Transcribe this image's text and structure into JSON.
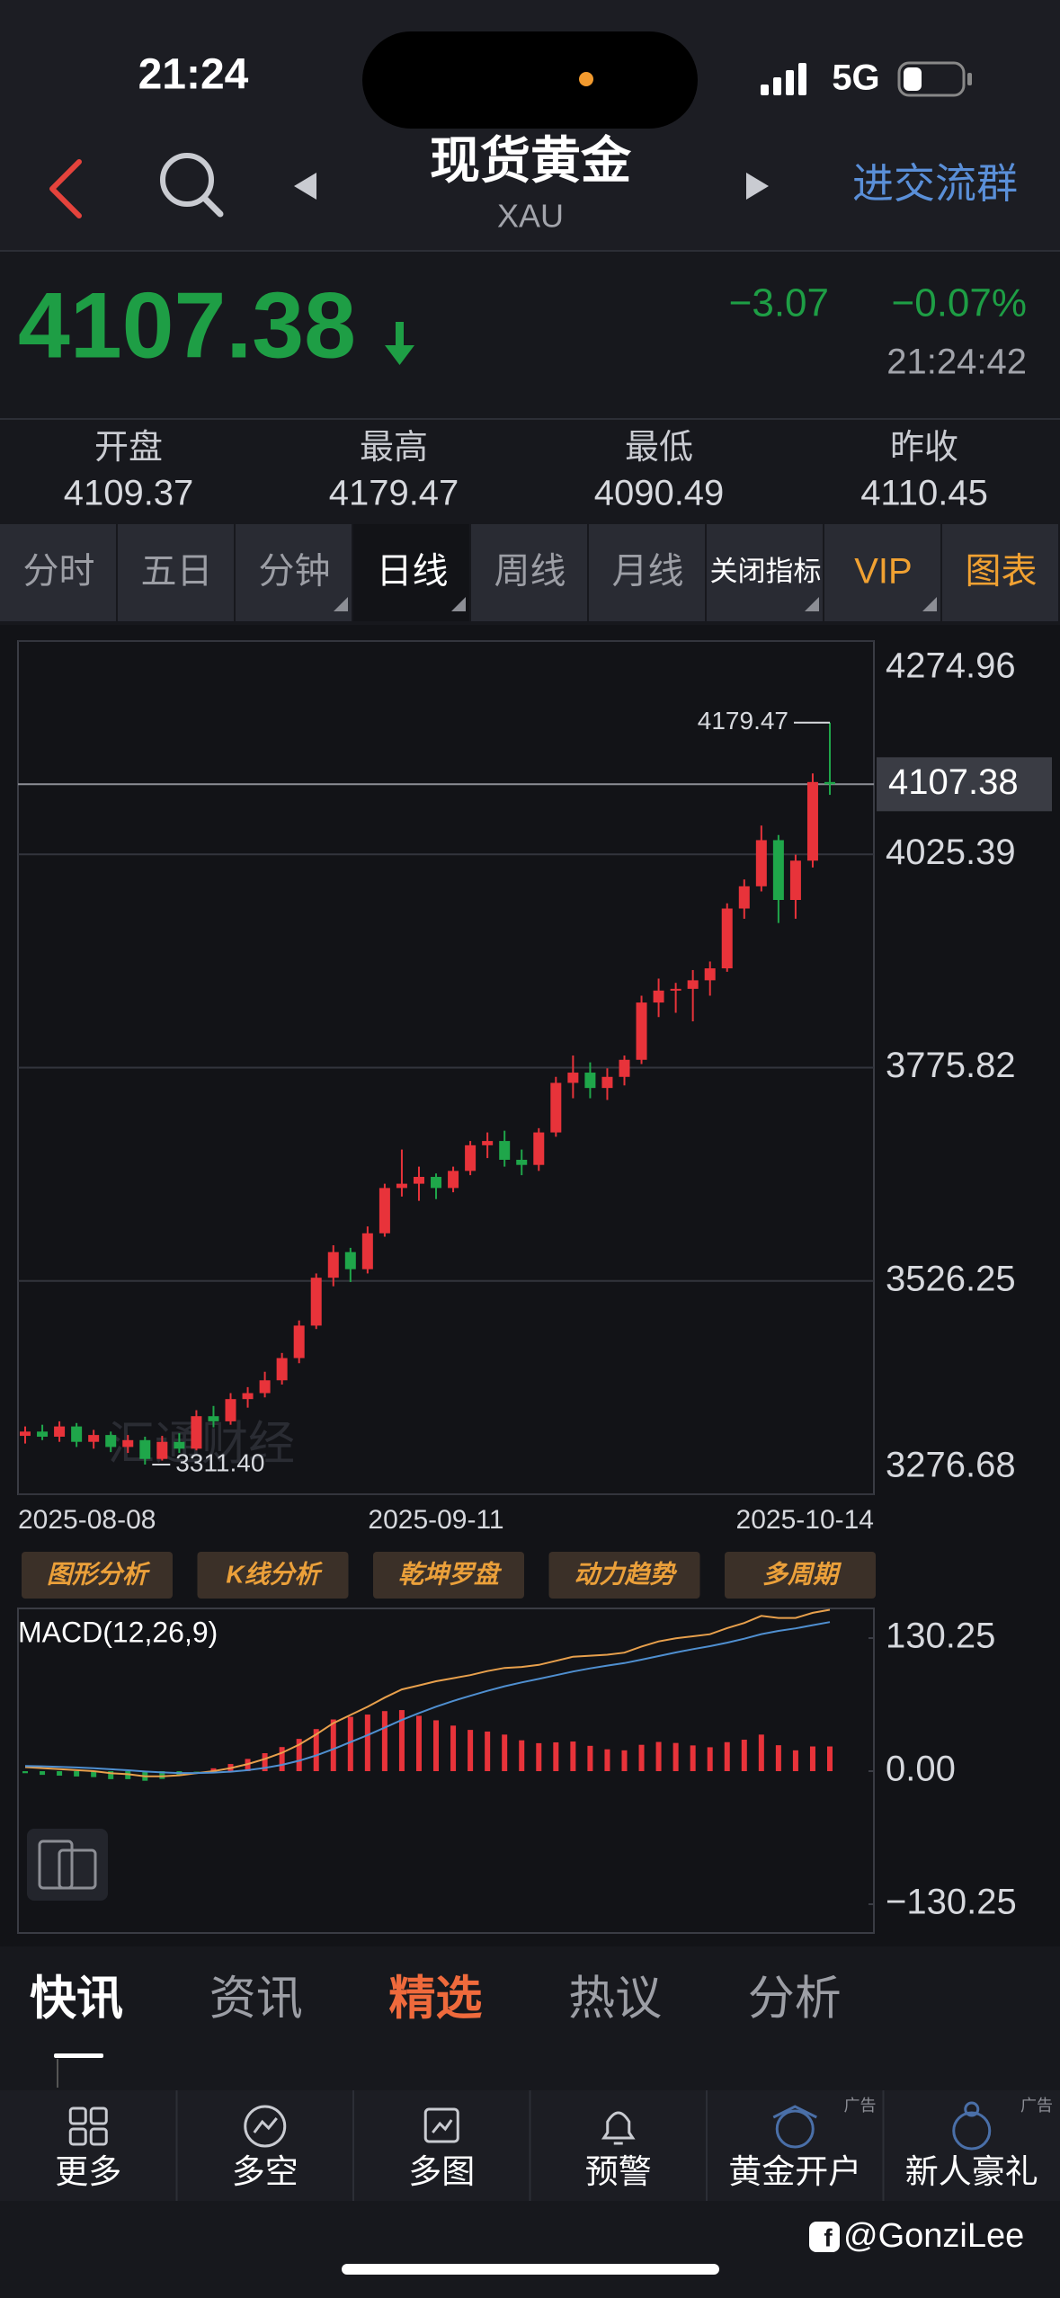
{
  "status_bar": {
    "time": "21:24",
    "network": "5G"
  },
  "header": {
    "title": "现货黄金",
    "symbol": "XAU",
    "group_button": "进交流群"
  },
  "quote": {
    "price": "4107.38",
    "change": "−3.07",
    "change_pct": "−0.07%",
    "time": "21:24:42",
    "stats": [
      {
        "label": "开盘",
        "value": "4109.37"
      },
      {
        "label": "最高",
        "value": "4179.47"
      },
      {
        "label": "最低",
        "value": "4090.49"
      },
      {
        "label": "昨收",
        "value": "4110.45"
      }
    ]
  },
  "period_tabs": [
    "分时",
    "五日",
    "分钟",
    "日线",
    "周线",
    "月线",
    "关闭指标",
    "VIP",
    "图表"
  ],
  "chart_data": [
    {
      "type": "candlestick",
      "categories": [
        "2025-08-08",
        null,
        null,
        null,
        null,
        null,
        null,
        null,
        null,
        null,
        null,
        null,
        null,
        null,
        null,
        null,
        null,
        null,
        null,
        null,
        null,
        null,
        null,
        null,
        "2025-09-11",
        null,
        null,
        null,
        null,
        null,
        null,
        null,
        null,
        null,
        null,
        null,
        null,
        null,
        null,
        null,
        null,
        null,
        null,
        null,
        null,
        null,
        null,
        "2025-10-14"
      ],
      "open": [
        3345,
        3350,
        3344,
        3356,
        3338,
        3346,
        3332,
        3340,
        3318,
        3338,
        3330,
        3368,
        3362,
        3388,
        3395,
        3410,
        3436,
        3474,
        3530,
        3560,
        3540,
        3582,
        3635,
        3640,
        3648,
        3635,
        3655,
        3685,
        3690,
        3668,
        3662,
        3700,
        3758,
        3770,
        3752,
        3765,
        3785,
        3852,
        3866,
        3868,
        3878,
        3892,
        3962,
        3988,
        4042,
        3972,
        4018,
        4110
      ],
      "high": [
        3356,
        3358,
        3362,
        3360,
        3352,
        3350,
        3346,
        3344,
        3345,
        3348,
        3375,
        3380,
        3395,
        3402,
        3420,
        3442,
        3480,
        3535,
        3568,
        3565,
        3590,
        3640,
        3680,
        3660,
        3652,
        3660,
        3690,
        3700,
        3702,
        3680,
        3705,
        3765,
        3790,
        3782,
        3775,
        3790,
        3860,
        3880,
        3875,
        3890,
        3900,
        3968,
        3996,
        4059,
        4048,
        4025,
        4120,
        4179.47
      ],
      "low": [
        3336,
        3340,
        3338,
        3332,
        3330,
        3326,
        3325,
        3311.4,
        3316,
        3325,
        3328,
        3355,
        3358,
        3378,
        3390,
        3405,
        3430,
        3470,
        3520,
        3525,
        3535,
        3578,
        3625,
        3620,
        3622,
        3630,
        3650,
        3670,
        3660,
        3650,
        3655,
        3695,
        3740,
        3740,
        3738,
        3755,
        3780,
        3835,
        3840,
        3830,
        3860,
        3888,
        3950,
        3982,
        3945,
        3950,
        4010,
        4095
      ],
      "close": [
        3350,
        3344,
        3356,
        3338,
        3346,
        3332,
        3340,
        3318,
        3338,
        3330,
        3368,
        3362,
        3388,
        3395,
        3410,
        3436,
        3474,
        3530,
        3560,
        3540,
        3582,
        3635,
        3640,
        3648,
        3635,
        3655,
        3685,
        3690,
        3668,
        3662,
        3700,
        3758,
        3770,
        3752,
        3765,
        3785,
        3852,
        3866,
        3868,
        3878,
        3892,
        3962,
        3988,
        4042,
        3972,
        4018,
        4110,
        4107.38
      ],
      "ylim": [
        3276.68,
        4274.96
      ],
      "yticks": [
        4274.96,
        4025.39,
        3775.82,
        3526.25,
        3276.68
      ],
      "grid": true,
      "last_price": 4107.38,
      "high_label": 4179.47,
      "low_label": {
        "value": 3311.4,
        "label": "3311.40"
      },
      "watermark": "汇通财经",
      "up_color": "#e8333a",
      "down_color": "#1fa64a"
    },
    {
      "type": "macd",
      "title": "MACD(12,26,9)",
      "lines": [
        {
          "color": "#e8a04c",
          "values": [
            4,
            3,
            2,
            1,
            0,
            -2,
            -3,
            -5,
            -5,
            -4,
            -2,
            0,
            3,
            7,
            12,
            18,
            26,
            36,
            47,
            55,
            63,
            72,
            80,
            84,
            88,
            91,
            94,
            98,
            101,
            102,
            104,
            108,
            112,
            113,
            114,
            116,
            122,
            127,
            130,
            132,
            134,
            140,
            145,
            152,
            150,
            150,
            155,
            158
          ]
        },
        {
          "color": "#4f8fd0",
          "values": [
            5,
            4.8,
            4.2,
            3.6,
            2.9,
            1.9,
            0.9,
            -0.3,
            -1.2,
            -1.8,
            -1.8,
            -1.4,
            -0.5,
            1,
            3.2,
            6.2,
            10.2,
            15.4,
            21.7,
            28.4,
            35.3,
            42.6,
            50.1,
            56.9,
            63.1,
            68.7,
            73.8,
            78.6,
            83.1,
            86.9,
            90.3,
            93.9,
            97.5,
            100.6,
            103.3,
            105.8,
            109.1,
            112.7,
            116.2,
            119.4,
            122.3,
            125.8,
            129.6,
            134.1,
            137.3,
            139.8,
            142.9,
            145.9
          ]
        }
      ],
      "histogram": [
        -2,
        -3.6,
        -4.4,
        -5.2,
        -5.8,
        -7.8,
        -7.8,
        -9.4,
        -7.6,
        -4.4,
        -0.4,
        2.8,
        7,
        12,
        17.6,
        23.6,
        31.6,
        41.2,
        50.6,
        53.2,
        55.4,
        58.8,
        59.8,
        54.2,
        49.8,
        44.6,
        40.4,
        38.8,
        35.8,
        30.2,
        27.4,
        28.2,
        29,
        24.8,
        21.4,
        20.4,
        25.8,
        28.6,
        27.6,
        25.2,
        23.4,
        28.4,
        30.8,
        35.8,
        25.4,
        20.4,
        24.2,
        24.2
      ],
      "ylim": [
        -158.4,
        159.3
      ],
      "yticks": [
        130.25,
        {
          "value": 0,
          "label": "0.00"
        },
        {
          "value": -130.25,
          "label": "−130.25"
        }
      ],
      "up_color": "#e8333a",
      "down_color": "#1fa64a"
    }
  ],
  "tool_buttons": [
    "图形分析",
    "K线分析",
    "乾坤罗盘",
    "动力趋势",
    "多周期"
  ],
  "news_tabs": [
    "快讯",
    "资讯",
    "精选",
    "热议",
    "分析"
  ],
  "nav": [
    {
      "label": "更多"
    },
    {
      "label": "多空"
    },
    {
      "label": "多图"
    },
    {
      "label": "预警"
    },
    {
      "label": "黄金开户",
      "ad_tag": "广告"
    },
    {
      "label": "新人豪礼",
      "ad_tag": "广告"
    }
  ],
  "credit": "@GonziLee"
}
